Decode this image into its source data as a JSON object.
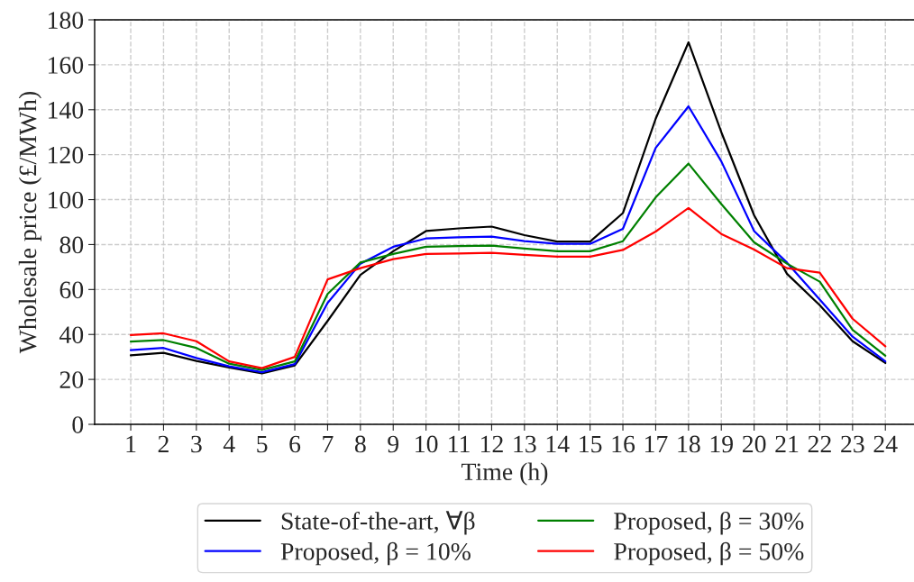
{
  "chart_data": {
    "type": "line",
    "xlabel": "Time (h)",
    "ylabel": "Wholesale price (£/MWh)",
    "x": [
      1,
      2,
      3,
      4,
      5,
      6,
      7,
      8,
      9,
      10,
      11,
      12,
      13,
      14,
      15,
      16,
      17,
      18,
      19,
      20,
      21,
      22,
      23,
      24
    ],
    "xlim": [
      -0.1,
      24.9
    ],
    "xticks": [
      1,
      2,
      3,
      4,
      5,
      6,
      7,
      8,
      9,
      10,
      11,
      12,
      13,
      14,
      15,
      16,
      17,
      18,
      19,
      20,
      21,
      22,
      23,
      24
    ],
    "ylim": [
      0,
      180
    ],
    "yticks": [
      0,
      20,
      40,
      60,
      80,
      100,
      120,
      140,
      160,
      180
    ],
    "grid": true,
    "legend": "bottom",
    "line_style": "solid",
    "marker": "none",
    "series": [
      {
        "name": "State-of-the-art, ∀β",
        "color": "#000000",
        "values": [
          30.7,
          31.8,
          28.2,
          25.3,
          22.7,
          26.2,
          46,
          66.5,
          77,
          86,
          87.2,
          88,
          84.2,
          81.3,
          81.3,
          94,
          136,
          170,
          130,
          93,
          67,
          53,
          37,
          27.3
        ]
      },
      {
        "name": "Proposed, β = 10%",
        "color": "#0000ff",
        "values": [
          33,
          34,
          29.5,
          25.8,
          23.2,
          26.8,
          54,
          71.5,
          79,
          82.7,
          83.2,
          83.5,
          81.5,
          80.3,
          80.3,
          87,
          123,
          141.5,
          117,
          86,
          72,
          55.5,
          39,
          28
        ]
      },
      {
        "name": "Proposed, β = 30%",
        "color": "#008000",
        "values": [
          36.8,
          37.5,
          34,
          27,
          24.2,
          28,
          58,
          72,
          75.8,
          79,
          79.3,
          79.5,
          78.2,
          77,
          77,
          81.5,
          101,
          116,
          98,
          81,
          71.5,
          63.5,
          42,
          30.5
        ]
      },
      {
        "name": "Proposed, β = 50%",
        "color": "#ff0000",
        "values": [
          39.7,
          40.5,
          37,
          28,
          25,
          30,
          64.5,
          69.5,
          73.5,
          75.8,
          76,
          76.3,
          75.4,
          74.6,
          74.6,
          77.6,
          85.8,
          96.3,
          84.7,
          77.8,
          69.5,
          67.5,
          47,
          34.7
        ]
      }
    ]
  }
}
